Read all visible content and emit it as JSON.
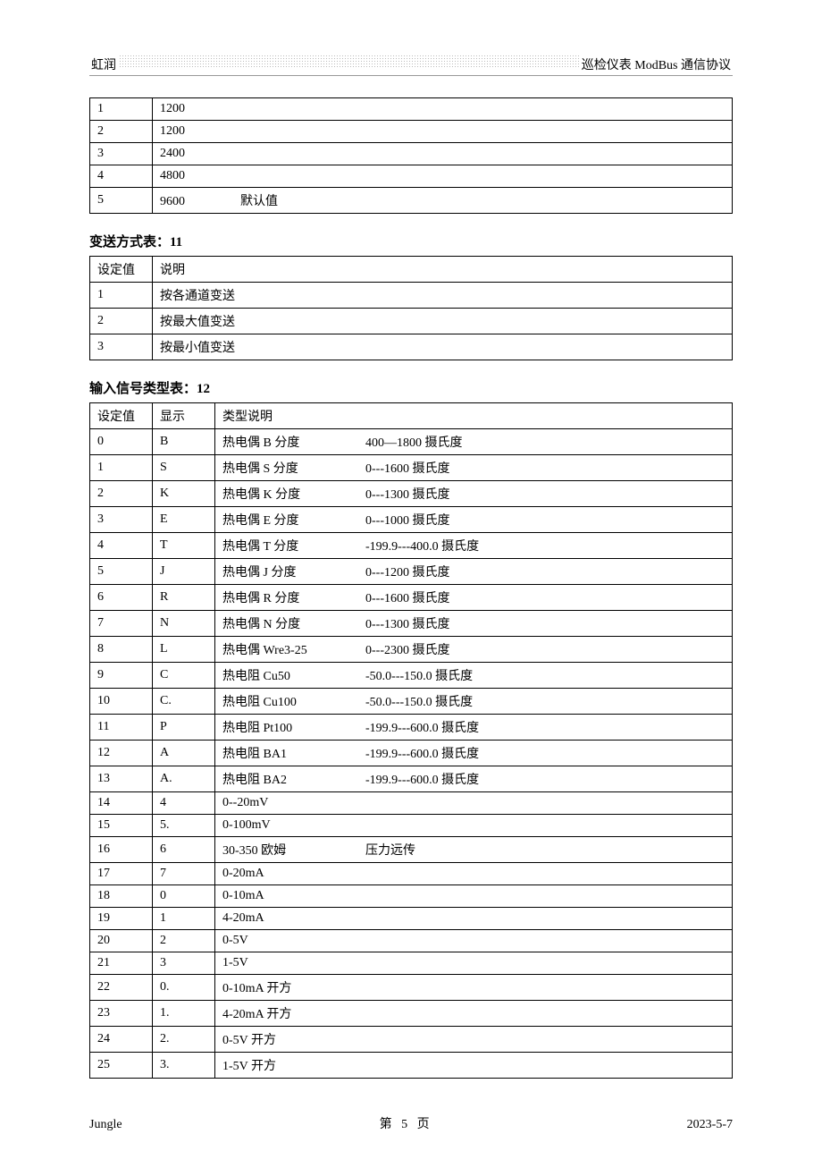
{
  "header": {
    "left": "虹润",
    "right": "巡检仪表 ModBus 通信协议"
  },
  "table_baud": {
    "rows": [
      {
        "idx": "1",
        "val": "1200",
        "note": ""
      },
      {
        "idx": "2",
        "val": "1200",
        "note": ""
      },
      {
        "idx": "3",
        "val": "2400",
        "note": ""
      },
      {
        "idx": "4",
        "val": "4800",
        "note": ""
      },
      {
        "idx": "5",
        "val": "9600",
        "note": "默认值"
      }
    ]
  },
  "section11": {
    "title": "变送方式表：11",
    "headers": {
      "c1": "设定值",
      "c2": "说明"
    },
    "rows": [
      {
        "c1": "1",
        "c2": "按各通道变送"
      },
      {
        "c1": "2",
        "c2": "按最大值变送"
      },
      {
        "c1": "3",
        "c2": "按最小值变送"
      }
    ]
  },
  "section12": {
    "title": "输入信号类型表：12",
    "headers": {
      "c1": "设定值",
      "c2": "显示",
      "c3": "类型说明"
    },
    "rows": [
      {
        "c1": "0",
        "c2": "B",
        "d1": "热电偶 B 分度",
        "d2": "400—1800 摄氏度"
      },
      {
        "c1": "1",
        "c2": "S",
        "d1": "热电偶 S 分度",
        "d2": "0---1600 摄氏度"
      },
      {
        "c1": "2",
        "c2": "K",
        "d1": "热电偶 K 分度",
        "d2": "0---1300 摄氏度"
      },
      {
        "c1": "3",
        "c2": "E",
        "d1": "热电偶 E 分度",
        "d2": "0---1000 摄氏度"
      },
      {
        "c1": "4",
        "c2": "T",
        "d1": "热电偶 T 分度",
        "d2": "-199.9---400.0 摄氏度"
      },
      {
        "c1": "5",
        "c2": "J",
        "d1": "热电偶 J 分度",
        "d2": "0---1200 摄氏度"
      },
      {
        "c1": "6",
        "c2": "R",
        "d1": "热电偶 R 分度",
        "d2": "0---1600 摄氏度"
      },
      {
        "c1": "7",
        "c2": "N",
        "d1": "热电偶 N 分度",
        "d2": "0---1300 摄氏度"
      },
      {
        "c1": "8",
        "c2": "L",
        "d1": "热电偶 Wre3-25",
        "d2": "0---2300 摄氏度"
      },
      {
        "c1": "9",
        "c2": "C",
        "d1": "热电阻 Cu50",
        "d2": "-50.0---150.0 摄氏度"
      },
      {
        "c1": "10",
        "c2": "C.",
        "d1": "热电阻 Cu100",
        "d2": "-50.0---150.0 摄氏度"
      },
      {
        "c1": "11",
        "c2": "P",
        "d1": "热电阻 Pt100",
        "d2": "-199.9---600.0 摄氏度"
      },
      {
        "c1": "12",
        "c2": "A",
        "d1": "热电阻 BA1",
        "d2": "-199.9---600.0 摄氏度"
      },
      {
        "c1": "13",
        "c2": "A.",
        "d1": "热电阻 BA2",
        "d2": "-199.9---600.0 摄氏度"
      },
      {
        "c1": "14",
        "c2": "4",
        "d1": "0--20mV",
        "d2": ""
      },
      {
        "c1": "15",
        "c2": "5.",
        "d1": "0-100mV",
        "d2": ""
      },
      {
        "c1": "16",
        "c2": "6",
        "d1": "30-350 欧姆",
        "d2": "压力远传"
      },
      {
        "c1": "17",
        "c2": "7",
        "d1": "0-20mA",
        "d2": ""
      },
      {
        "c1": "18",
        "c2": "0",
        "d1": "0-10mA",
        "d2": ""
      },
      {
        "c1": "19",
        "c2": "1",
        "d1": "4-20mA",
        "d2": ""
      },
      {
        "c1": "20",
        "c2": "2",
        "d1": "0-5V",
        "d2": ""
      },
      {
        "c1": "21",
        "c2": "3",
        "d1": "1-5V",
        "d2": ""
      },
      {
        "c1": "22",
        "c2": "0.",
        "d1": "0-10mA 开方",
        "d2": ""
      },
      {
        "c1": "23",
        "c2": "1.",
        "d1": "4-20mA 开方",
        "d2": ""
      },
      {
        "c1": "24",
        "c2": "2.",
        "d1": "0-5V 开方",
        "d2": ""
      },
      {
        "c1": "25",
        "c2": "3.",
        "d1": "1-5V 开方",
        "d2": ""
      }
    ]
  },
  "footer": {
    "left": "Jungle",
    "center_prefix": "第",
    "page": "5",
    "center_suffix": "页",
    "right": "2023-5-7"
  }
}
